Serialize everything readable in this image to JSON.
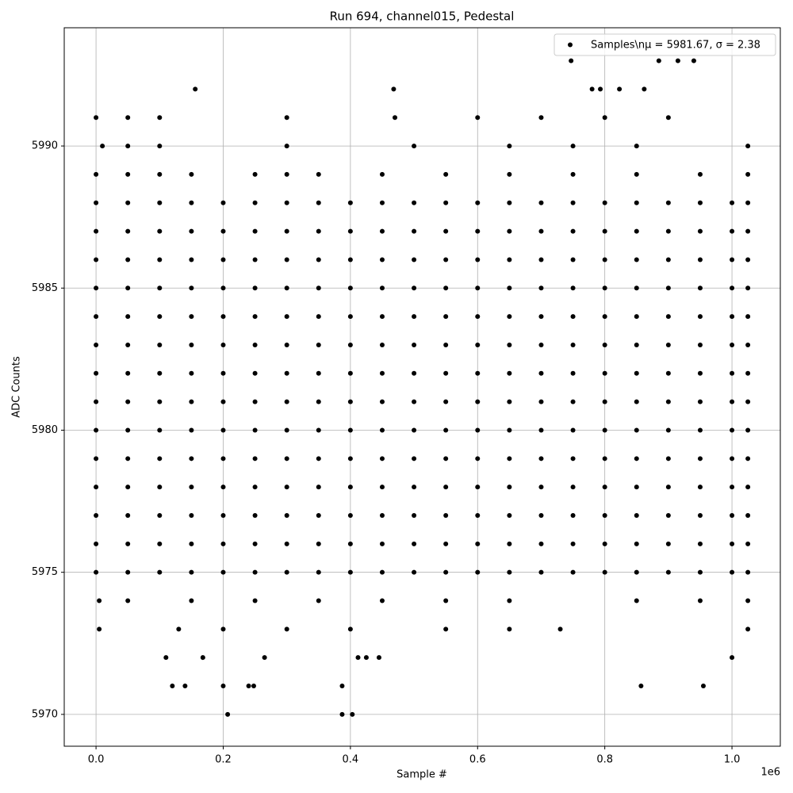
{
  "chart_data": {
    "type": "scatter",
    "title": "Run 694, channel015, Pedestal",
    "x_label": "Sample #",
    "y_label": "ADC Counts",
    "x_offset_label": "1e6",
    "xlim": [
      -0.05,
      1.076
    ],
    "ylim": [
      5968.88,
      5994.16
    ],
    "xticks": [
      {
        "value": 0,
        "label": "0.0"
      },
      0.2,
      0.4,
      0.6,
      0.8,
      {
        "value": 1,
        "label": "1.0"
      }
    ],
    "yticks": [
      5970,
      5975,
      5980,
      5985,
      5990
    ],
    "grid": true,
    "legend": "upper right",
    "x": [
      0,
      0.05,
      0.1,
      0.15,
      0.2,
      0.25,
      0.3,
      0.35,
      0.4,
      0.45,
      0.5,
      0.55,
      0.6,
      0.65,
      0.7,
      0.75,
      0.8,
      0.85,
      0.9,
      0.95,
      1.0,
      1.025,
      0,
      0.05,
      0.1,
      0.15,
      0.2,
      0.25,
      0.3,
      0.35,
      0.4,
      0.45,
      0.5,
      0.55,
      0.6,
      0.65,
      0.7,
      0.75,
      0.8,
      0.85,
      0.9,
      0.95,
      1.0,
      1.025,
      0,
      0.05,
      0.1,
      0.15,
      0.2,
      0.25,
      0.3,
      0.35,
      0.4,
      0.45,
      0.5,
      0.55,
      0.6,
      0.65,
      0.7,
      0.75,
      0.8,
      0.85,
      0.9,
      0.95,
      1.0,
      1.025,
      0,
      0.05,
      0.1,
      0.15,
      0.2,
      0.25,
      0.3,
      0.35,
      0.4,
      0.45,
      0.5,
      0.55,
      0.6,
      0.65,
      0.7,
      0.75,
      0.8,
      0.85,
      0.9,
      0.95,
      1.0,
      1.025,
      0,
      0.05,
      0.1,
      0.15,
      0.2,
      0.25,
      0.3,
      0.35,
      0.4,
      0.45,
      0.5,
      0.55,
      0.6,
      0.65,
      0.7,
      0.75,
      0.8,
      0.85,
      0.9,
      0.95,
      1.0,
      1.025,
      0,
      0.05,
      0.1,
      0.15,
      0.2,
      0.25,
      0.3,
      0.35,
      0.4,
      0.45,
      0.5,
      0.55,
      0.6,
      0.65,
      0.7,
      0.75,
      0.8,
      0.85,
      0.9,
      0.95,
      1.0,
      1.025,
      0,
      0.05,
      0.1,
      0.15,
      0.2,
      0.25,
      0.3,
      0.35,
      0.4,
      0.45,
      0.5,
      0.55,
      0.6,
      0.65,
      0.7,
      0.75,
      0.8,
      0.85,
      0.9,
      0.95,
      1.0,
      1.025,
      0,
      0.05,
      0.1,
      0.15,
      0.2,
      0.25,
      0.3,
      0.35,
      0.4,
      0.45,
      0.5,
      0.55,
      0.6,
      0.65,
      0.7,
      0.75,
      0.8,
      0.85,
      0.9,
      0.95,
      1.0,
      1.025,
      0,
      0.05,
      0.1,
      0.15,
      0.2,
      0.25,
      0.3,
      0.35,
      0.4,
      0.45,
      0.5,
      0.55,
      0.6,
      0.65,
      0.7,
      0.75,
      0.8,
      0.85,
      0.9,
      0.95,
      1.0,
      1.025,
      0,
      0.05,
      0.1,
      0.15,
      0.2,
      0.25,
      0.3,
      0.35,
      0.4,
      0.45,
      0.5,
      0.55,
      0.6,
      0.65,
      0.7,
      0.75,
      0.8,
      0.85,
      0.9,
      0.95,
      1.0,
      1.025,
      0,
      0.05,
      0.1,
      0.15,
      0.2,
      0.25,
      0.3,
      0.35,
      0.4,
      0.45,
      0.5,
      0.55,
      0.6,
      0.65,
      0.7,
      0.75,
      0.8,
      0.85,
      0.9,
      0.95,
      1.0,
      1.025,
      0,
      0.05,
      0.1,
      0.15,
      0.2,
      0.25,
      0.3,
      0.35,
      0.4,
      0.45,
      0.5,
      0.55,
      0.6,
      0.65,
      0.7,
      0.75,
      0.8,
      0.85,
      0.9,
      0.95,
      1.0,
      1.025,
      0,
      0.05,
      0.1,
      0.15,
      0.2,
      0.25,
      0.3,
      0.35,
      0.4,
      0.45,
      0.5,
      0.55,
      0.6,
      0.65,
      0.7,
      0.75,
      0.8,
      0.85,
      0.9,
      0.95,
      1.0,
      1.025,
      0,
      0.05,
      0.1,
      0.15,
      0.2,
      0.25,
      0.3,
      0.35,
      0.4,
      0.45,
      0.5,
      0.55,
      0.6,
      0.65,
      0.7,
      0.75,
      0.8,
      0.85,
      0.9,
      0.95,
      1.0,
      1.025,
      0,
      0.05,
      0.1,
      0.3,
      0.47,
      0.6,
      0.7,
      0.8,
      0.9,
      0.01,
      0.05,
      0.1,
      0.3,
      0.5,
      0.65,
      0.75,
      0.85,
      1.025,
      0,
      0.05,
      0.1,
      0.15,
      0.25,
      0.3,
      0.35,
      0.45,
      0.55,
      0.65,
      0.75,
      0.85,
      0.95,
      1.025,
      0.005,
      0.05,
      0.15,
      0.25,
      0.35,
      0.45,
      0.55,
      0.65,
      0.85,
      0.95,
      1.025,
      0.005,
      0.13,
      0.2,
      0.3,
      0.4,
      0.55,
      0.65,
      0.73,
      1.025,
      0.156,
      0.468,
      0.747,
      0.885,
      0.915,
      0.94,
      0.78,
      0.793,
      0.823,
      0.862,
      0.11,
      0.168,
      0.265,
      0.412,
      0.425,
      0.445,
      1.0,
      0.12,
      0.14,
      0.2,
      0.24,
      0.248,
      0.387,
      0.857,
      0.955,
      0.207,
      0.387,
      0.403
    ],
    "series": [
      {
        "name": "Samples\\nμ = 5981.67, σ = 2.38",
        "color": "#000000",
        "values": [
          5975,
          5975,
          5975,
          5975,
          5975,
          5975,
          5975,
          5975,
          5975,
          5975,
          5975,
          5975,
          5975,
          5975,
          5975,
          5975,
          5975,
          5975,
          5975,
          5975,
          5975,
          5975,
          5976,
          5976,
          5976,
          5976,
          5976,
          5976,
          5976,
          5976,
          5976,
          5976,
          5976,
          5976,
          5976,
          5976,
          5976,
          5976,
          5976,
          5976,
          5976,
          5976,
          5976,
          5976,
          5977,
          5977,
          5977,
          5977,
          5977,
          5977,
          5977,
          5977,
          5977,
          5977,
          5977,
          5977,
          5977,
          5977,
          5977,
          5977,
          5977,
          5977,
          5977,
          5977,
          5977,
          5977,
          5978,
          5978,
          5978,
          5978,
          5978,
          5978,
          5978,
          5978,
          5978,
          5978,
          5978,
          5978,
          5978,
          5978,
          5978,
          5978,
          5978,
          5978,
          5978,
          5978,
          5978,
          5978,
          5979,
          5979,
          5979,
          5979,
          5979,
          5979,
          5979,
          5979,
          5979,
          5979,
          5979,
          5979,
          5979,
          5979,
          5979,
          5979,
          5979,
          5979,
          5979,
          5979,
          5979,
          5979,
          5980,
          5980,
          5980,
          5980,
          5980,
          5980,
          5980,
          5980,
          5980,
          5980,
          5980,
          5980,
          5980,
          5980,
          5980,
          5980,
          5980,
          5980,
          5980,
          5980,
          5980,
          5980,
          5981,
          5981,
          5981,
          5981,
          5981,
          5981,
          5981,
          5981,
          5981,
          5981,
          5981,
          5981,
          5981,
          5981,
          5981,
          5981,
          5981,
          5981,
          5981,
          5981,
          5981,
          5981,
          5982,
          5982,
          5982,
          5982,
          5982,
          5982,
          5982,
          5982,
          5982,
          5982,
          5982,
          5982,
          5982,
          5982,
          5982,
          5982,
          5982,
          5982,
          5982,
          5982,
          5982,
          5982,
          5983,
          5983,
          5983,
          5983,
          5983,
          5983,
          5983,
          5983,
          5983,
          5983,
          5983,
          5983,
          5983,
          5983,
          5983,
          5983,
          5983,
          5983,
          5983,
          5983,
          5983,
          5983,
          5984,
          5984,
          5984,
          5984,
          5984,
          5984,
          5984,
          5984,
          5984,
          5984,
          5984,
          5984,
          5984,
          5984,
          5984,
          5984,
          5984,
          5984,
          5984,
          5984,
          5984,
          5984,
          5985,
          5985,
          5985,
          5985,
          5985,
          5985,
          5985,
          5985,
          5985,
          5985,
          5985,
          5985,
          5985,
          5985,
          5985,
          5985,
          5985,
          5985,
          5985,
          5985,
          5985,
          5985,
          5986,
          5986,
          5986,
          5986,
          5986,
          5986,
          5986,
          5986,
          5986,
          5986,
          5986,
          5986,
          5986,
          5986,
          5986,
          5986,
          5986,
          5986,
          5986,
          5986,
          5986,
          5986,
          5987,
          5987,
          5987,
          5987,
          5987,
          5987,
          5987,
          5987,
          5987,
          5987,
          5987,
          5987,
          5987,
          5987,
          5987,
          5987,
          5987,
          5987,
          5987,
          5987,
          5987,
          5987,
          5988,
          5988,
          5988,
          5988,
          5988,
          5988,
          5988,
          5988,
          5988,
          5988,
          5988,
          5988,
          5988,
          5988,
          5988,
          5988,
          5988,
          5988,
          5988,
          5988,
          5988,
          5988,
          5991,
          5991,
          5991,
          5991,
          5991,
          5991,
          5991,
          5991,
          5991,
          5990,
          5990,
          5990,
          5990,
          5990,
          5990,
          5990,
          5990,
          5990,
          5989,
          5989,
          5989,
          5989,
          5989,
          5989,
          5989,
          5989,
          5989,
          5989,
          5989,
          5989,
          5989,
          5989,
          5974,
          5974,
          5974,
          5974,
          5974,
          5974,
          5974,
          5974,
          5974,
          5974,
          5974,
          5973,
          5973,
          5973,
          5973,
          5973,
          5973,
          5973,
          5973,
          5973,
          5992,
          5992,
          5993,
          5993,
          5993,
          5993,
          5992,
          5992,
          5992,
          5992,
          5972,
          5972,
          5972,
          5972,
          5972,
          5972,
          5972,
          5971,
          5971,
          5971,
          5971,
          5971,
          5971,
          5971,
          5971,
          5970,
          5970,
          5970
        ]
      }
    ]
  }
}
